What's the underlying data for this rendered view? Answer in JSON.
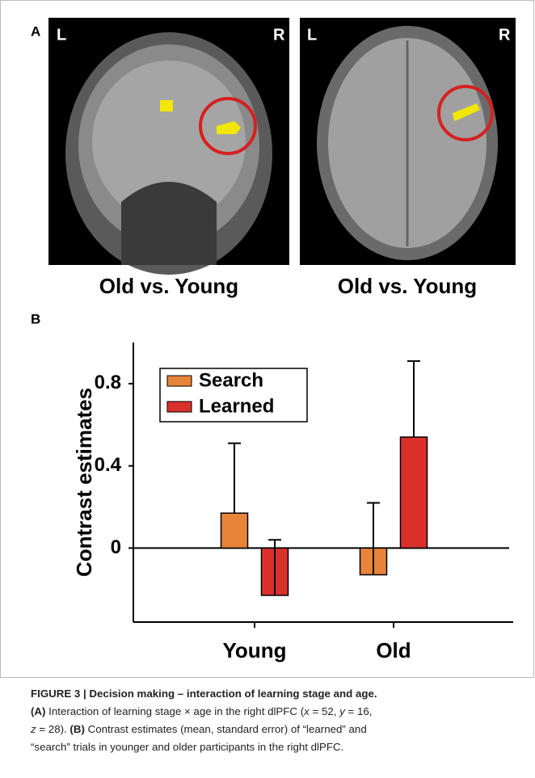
{
  "panel_a": {
    "label": "A",
    "images": [
      {
        "left_label": "L",
        "right_label": "R",
        "caption": "Old  vs. Young"
      },
      {
        "left_label": "L",
        "right_label": "R",
        "caption": "Old  vs. Young"
      }
    ]
  },
  "panel_b": {
    "label": "B"
  },
  "chart_data": {
    "type": "bar",
    "ylabel": "Contrast estimates",
    "categories": [
      "Young",
      "Old"
    ],
    "series": [
      {
        "name": "Search",
        "color": "#e8833a",
        "values": [
          0.17,
          -0.13
        ],
        "errors": [
          0.34,
          0.35
        ]
      },
      {
        "name": "Learned",
        "color": "#d9302c",
        "values": [
          -0.23,
          0.54
        ],
        "errors": [
          0.27,
          0.37
        ]
      }
    ],
    "ylim": [
      -0.36,
      1.0
    ],
    "yticks": [
      0,
      0.4,
      0.8
    ],
    "legend": "upper left"
  },
  "caption": {
    "title": "FIGURE 3 | Decision making – interaction of learning stage and age.",
    "parts": [
      "(A)",
      " Interaction of learning stage × age in the right dlPFC (",
      "x",
      " = 52, ",
      "y",
      " = 16,",
      "z",
      " = 28). ",
      "(B)",
      " Contrast estimates (mean, standard error) of “learned” and",
      "“search” trials in younger and older participants in the right dlPFC."
    ]
  }
}
